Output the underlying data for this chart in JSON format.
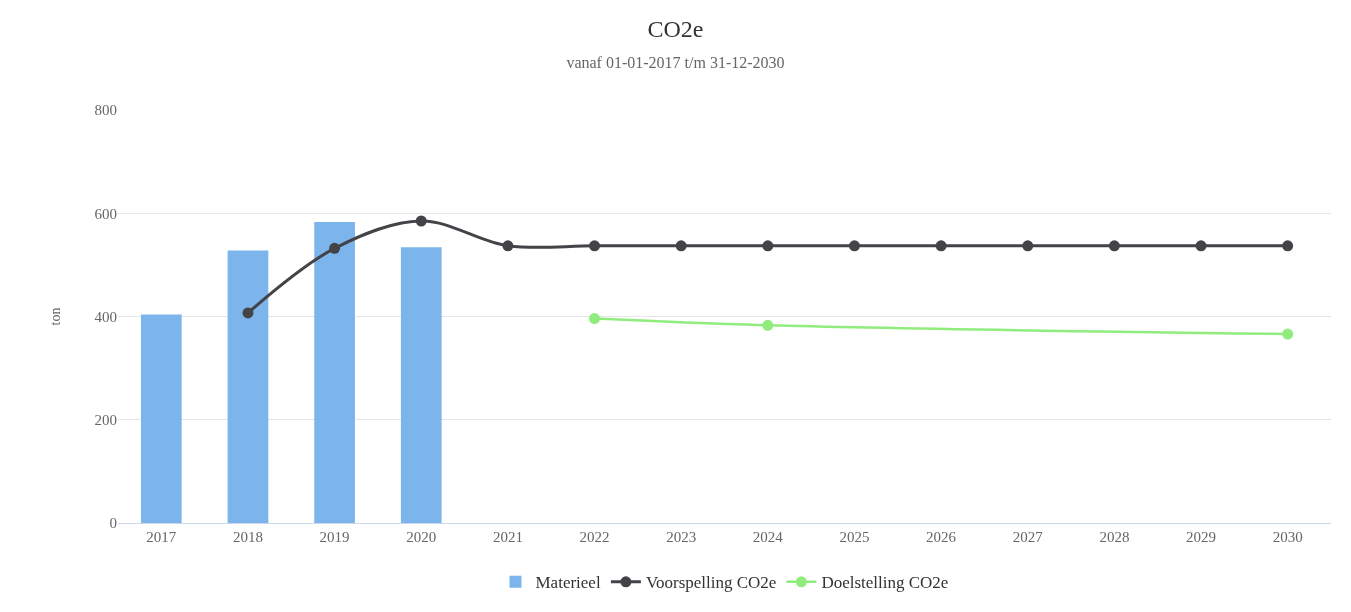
{
  "chart_data": {
    "type": "bar",
    "title": "CO2e",
    "subtitle": "vanaf 01-01-2017 t/m 31-12-2030",
    "ylabel": "ton",
    "categories": [
      "2017",
      "2018",
      "2019",
      "2020",
      "2021",
      "2022",
      "2023",
      "2024",
      "2025",
      "2026",
      "2027",
      "2028",
      "2029",
      "2030"
    ],
    "series": [
      {
        "name": "Materieel",
        "color": "#7cb5ec",
        "values": [
          404,
          528,
          583,
          534,
          null,
          null,
          null,
          null,
          null,
          null,
          null,
          null,
          null,
          null
        ]
      },
      {
        "name": "Voorspelling CO2e",
        "type": "line",
        "color": "#434348",
        "marker": "circle",
        "values": [
          null,
          407,
          532,
          585,
          537,
          537,
          537,
          537,
          537,
          537,
          537,
          537,
          537,
          537
        ]
      },
      {
        "name": "Doelstelling CO2e",
        "type": "line",
        "color": "#90ed7d",
        "marker": "circle",
        "values": [
          null,
          null,
          null,
          null,
          null,
          396,
          null,
          383,
          null,
          null,
          null,
          null,
          null,
          366
        ]
      }
    ],
    "ylim": [
      0,
      800
    ],
    "yticks": [
      0,
      200,
      400,
      600,
      800
    ],
    "grid": "y",
    "legend": "bottom"
  }
}
